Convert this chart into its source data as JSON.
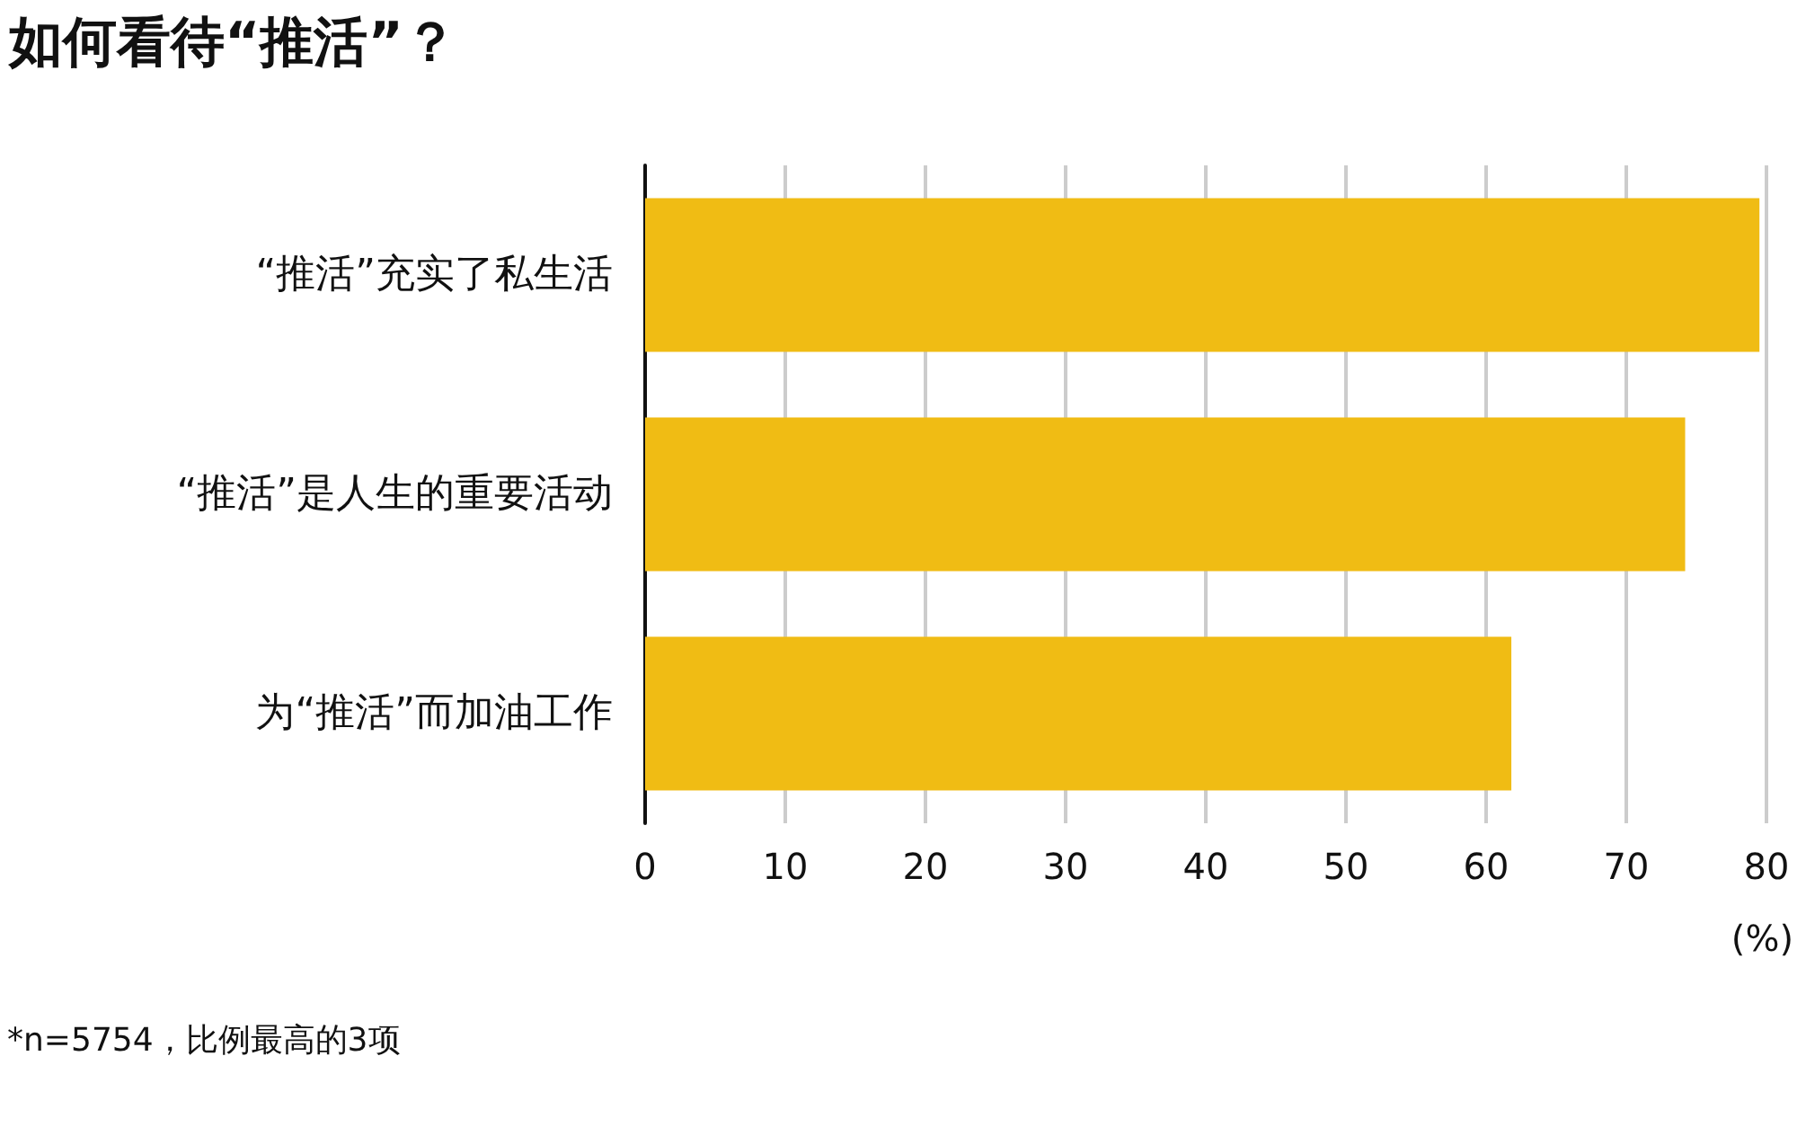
{
  "chart_data": {
    "type": "bar",
    "orientation": "horizontal",
    "title": "如何看待“推活”？",
    "categories": [
      "“推活”充实了私生活",
      "“推活”是人生的重要活动",
      "为“推活”而加油工作"
    ],
    "values": [
      79.5,
      74.2,
      61.8
    ],
    "color": "#f0bc14",
    "xlim": [
      0,
      80
    ],
    "xticks": [
      0,
      10,
      20,
      30,
      40,
      50,
      60,
      70,
      80
    ],
    "xlabel": "(%)",
    "grid": "x",
    "annotations": [
      "*n=5754，比例最高的3项"
    ]
  }
}
